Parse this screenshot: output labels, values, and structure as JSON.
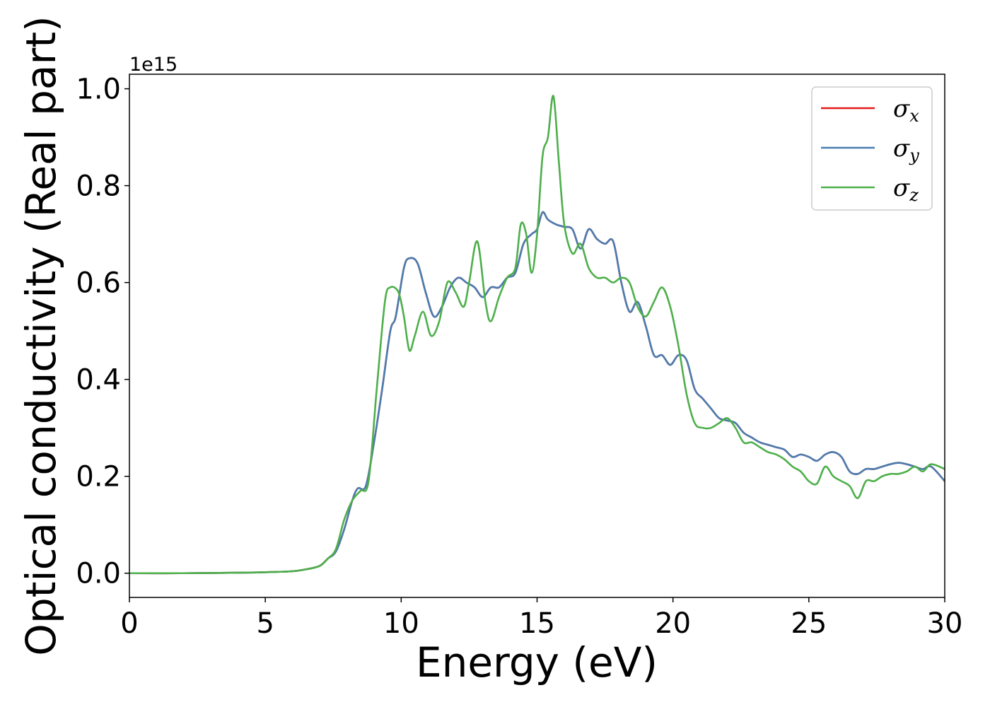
{
  "chart_data": {
    "type": "line",
    "title": "",
    "xlabel": "Energy (eV)",
    "ylabel": "Optical conductivity (Real part)",
    "y_offset_text": "1e15",
    "xlim": [
      0,
      30
    ],
    "ylim": [
      -0.05,
      1.03
    ],
    "xticks": [
      0,
      5,
      10,
      15,
      20,
      25,
      30
    ],
    "xtick_labels": [
      "0",
      "5",
      "10",
      "15",
      "20",
      "25",
      "30"
    ],
    "yticks": [
      0.0,
      0.2,
      0.4,
      0.6,
      0.8,
      1.0
    ],
    "ytick_labels": [
      "0.0",
      "0.2",
      "0.4",
      "0.6",
      "0.8",
      "1.0"
    ],
    "grid": false,
    "legend_position": "top-right",
    "series": [
      {
        "name": "σx",
        "symbol": "σ",
        "subscript": "x",
        "color": "#e41a1c",
        "x": [
          0,
          2,
          4,
          5,
          6,
          6.5,
          7,
          7.3,
          7.6,
          7.9,
          8.2,
          8.4,
          8.7,
          9.0,
          9.3,
          9.6,
          9.8,
          10.1,
          10.3,
          10.6,
          10.9,
          11.2,
          11.5,
          11.8,
          12.1,
          12.4,
          12.7,
          13.0,
          13.3,
          13.6,
          13.9,
          14.2,
          14.5,
          14.8,
          15.0,
          15.2,
          15.4,
          15.7,
          16.0,
          16.3,
          16.6,
          16.9,
          17.2,
          17.5,
          17.8,
          18.1,
          18.4,
          18.7,
          19.0,
          19.3,
          19.6,
          19.9,
          20.2,
          20.5,
          20.8,
          21.1,
          21.4,
          21.7,
          22.0,
          22.3,
          22.6,
          22.9,
          23.2,
          23.5,
          23.8,
          24.1,
          24.4,
          24.7,
          25.0,
          25.3,
          25.6,
          25.9,
          26.2,
          26.5,
          26.8,
          27.1,
          27.4,
          27.7,
          28.0,
          28.3,
          28.6,
          28.9,
          29.2,
          29.5,
          30.0
        ],
        "values": [
          0,
          0,
          0.001,
          0.002,
          0.004,
          0.008,
          0.015,
          0.03,
          0.045,
          0.09,
          0.15,
          0.175,
          0.18,
          0.27,
          0.38,
          0.5,
          0.53,
          0.63,
          0.65,
          0.64,
          0.58,
          0.53,
          0.55,
          0.59,
          0.61,
          0.6,
          0.59,
          0.57,
          0.59,
          0.59,
          0.61,
          0.62,
          0.68,
          0.7,
          0.71,
          0.745,
          0.73,
          0.72,
          0.715,
          0.71,
          0.67,
          0.71,
          0.69,
          0.68,
          0.685,
          0.6,
          0.54,
          0.56,
          0.51,
          0.45,
          0.45,
          0.43,
          0.45,
          0.44,
          0.38,
          0.36,
          0.34,
          0.32,
          0.315,
          0.31,
          0.29,
          0.28,
          0.27,
          0.265,
          0.26,
          0.255,
          0.24,
          0.245,
          0.24,
          0.232,
          0.245,
          0.25,
          0.24,
          0.21,
          0.205,
          0.215,
          0.215,
          0.22,
          0.225,
          0.228,
          0.225,
          0.22,
          0.215,
          0.22,
          0.19
        ]
      },
      {
        "name": "σy",
        "symbol": "σ",
        "subscript": "y",
        "color": "#4a7db0",
        "x": [
          0,
          2,
          4,
          5,
          6,
          6.5,
          7,
          7.3,
          7.6,
          7.9,
          8.2,
          8.4,
          8.7,
          9.0,
          9.3,
          9.6,
          9.8,
          10.1,
          10.3,
          10.6,
          10.9,
          11.2,
          11.5,
          11.8,
          12.1,
          12.4,
          12.7,
          13.0,
          13.3,
          13.6,
          13.9,
          14.2,
          14.5,
          14.8,
          15.0,
          15.2,
          15.4,
          15.7,
          16.0,
          16.3,
          16.6,
          16.9,
          17.2,
          17.5,
          17.8,
          18.1,
          18.4,
          18.7,
          19.0,
          19.3,
          19.6,
          19.9,
          20.2,
          20.5,
          20.8,
          21.1,
          21.4,
          21.7,
          22.0,
          22.3,
          22.6,
          22.9,
          23.2,
          23.5,
          23.8,
          24.1,
          24.4,
          24.7,
          25.0,
          25.3,
          25.6,
          25.9,
          26.2,
          26.5,
          26.8,
          27.1,
          27.4,
          27.7,
          28.0,
          28.3,
          28.6,
          28.9,
          29.2,
          29.5,
          30.0
        ],
        "values": [
          0,
          0,
          0.001,
          0.002,
          0.004,
          0.008,
          0.015,
          0.03,
          0.045,
          0.09,
          0.15,
          0.175,
          0.18,
          0.27,
          0.38,
          0.5,
          0.53,
          0.63,
          0.65,
          0.64,
          0.58,
          0.53,
          0.55,
          0.59,
          0.61,
          0.6,
          0.59,
          0.57,
          0.59,
          0.59,
          0.61,
          0.62,
          0.68,
          0.7,
          0.71,
          0.745,
          0.73,
          0.72,
          0.715,
          0.71,
          0.67,
          0.71,
          0.69,
          0.68,
          0.685,
          0.6,
          0.54,
          0.56,
          0.51,
          0.45,
          0.45,
          0.43,
          0.45,
          0.44,
          0.38,
          0.36,
          0.34,
          0.32,
          0.315,
          0.31,
          0.29,
          0.28,
          0.27,
          0.265,
          0.26,
          0.255,
          0.24,
          0.245,
          0.24,
          0.232,
          0.245,
          0.25,
          0.24,
          0.21,
          0.205,
          0.215,
          0.215,
          0.22,
          0.225,
          0.228,
          0.225,
          0.22,
          0.215,
          0.22,
          0.19
        ]
      },
      {
        "name": "σz",
        "symbol": "σ",
        "subscript": "z",
        "color": "#4daf4a",
        "x": [
          0,
          2,
          4,
          5,
          6,
          6.5,
          7,
          7.3,
          7.6,
          7.9,
          8.2,
          8.5,
          8.8,
          9.1,
          9.4,
          9.6,
          9.9,
          10.1,
          10.3,
          10.5,
          10.8,
          11.1,
          11.4,
          11.7,
          12.0,
          12.3,
          12.5,
          12.8,
          13.1,
          13.3,
          13.6,
          13.9,
          14.2,
          14.4,
          14.6,
          14.8,
          15.0,
          15.2,
          15.4,
          15.6,
          15.8,
          16.0,
          16.3,
          16.6,
          16.9,
          17.2,
          17.5,
          17.8,
          18.1,
          18.4,
          18.7,
          19.0,
          19.3,
          19.6,
          19.9,
          20.2,
          20.5,
          20.8,
          21.1,
          21.4,
          21.7,
          22.0,
          22.3,
          22.6,
          22.9,
          23.2,
          23.5,
          23.8,
          24.1,
          24.4,
          24.7,
          25.0,
          25.3,
          25.6,
          25.9,
          26.2,
          26.5,
          26.8,
          27.1,
          27.4,
          27.7,
          28.0,
          28.3,
          28.6,
          28.9,
          29.2,
          29.5,
          30.0
        ],
        "values": [
          0,
          0,
          0.001,
          0.002,
          0.004,
          0.008,
          0.015,
          0.03,
          0.05,
          0.11,
          0.15,
          0.17,
          0.19,
          0.38,
          0.56,
          0.59,
          0.58,
          0.53,
          0.46,
          0.49,
          0.54,
          0.49,
          0.52,
          0.6,
          0.58,
          0.55,
          0.6,
          0.685,
          0.56,
          0.52,
          0.57,
          0.61,
          0.63,
          0.72,
          0.7,
          0.62,
          0.7,
          0.86,
          0.9,
          0.985,
          0.85,
          0.72,
          0.66,
          0.68,
          0.63,
          0.61,
          0.61,
          0.6,
          0.61,
          0.6,
          0.55,
          0.53,
          0.56,
          0.59,
          0.55,
          0.47,
          0.37,
          0.31,
          0.3,
          0.3,
          0.31,
          0.32,
          0.3,
          0.27,
          0.27,
          0.26,
          0.25,
          0.245,
          0.235,
          0.22,
          0.21,
          0.19,
          0.185,
          0.22,
          0.2,
          0.19,
          0.18,
          0.155,
          0.19,
          0.19,
          0.2,
          0.205,
          0.205,
          0.21,
          0.22,
          0.21,
          0.225,
          0.215
        ]
      }
    ]
  }
}
